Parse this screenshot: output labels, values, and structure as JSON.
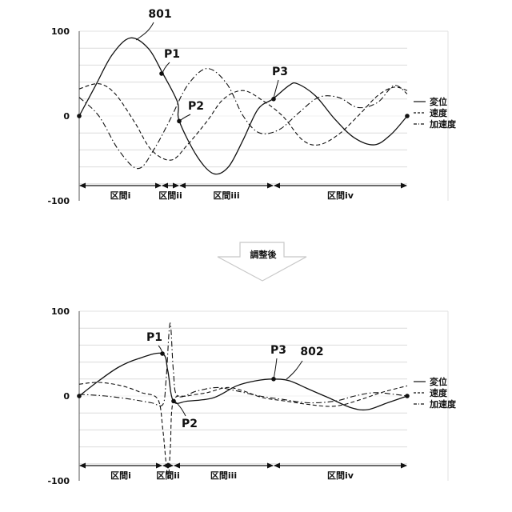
{
  "colors": {
    "line": "#111111",
    "grid": "#dcdcdc",
    "frame": "#e2e2e2",
    "arrow": "#c8c8c8"
  },
  "transition_label": "調整後",
  "chart_data": [
    {
      "type": "line",
      "callout": "801",
      "ylim": [
        -100,
        100
      ],
      "yticks": [
        "100",
        "0",
        "-100"
      ],
      "legend": [
        "変位",
        "速度",
        "加速度"
      ],
      "legend_placement": "right",
      "grid": true,
      "segments": [
        "区間i",
        "区間ii",
        "区間iii",
        "区間iv"
      ],
      "points": [
        {
          "label": "P1",
          "y": 50
        },
        {
          "label": "P2",
          "y": -6
        },
        {
          "label": "P3",
          "y": 20
        }
      ],
      "series": [
        {
          "name": "変位",
          "style": "solid",
          "values": [
            [
              0,
              0
            ],
            [
              0.05,
              36
            ],
            [
              0.1,
              72
            ],
            [
              0.155,
              92
            ],
            [
              0.21,
              80
            ],
            [
              0.255,
              50
            ],
            [
              0.3,
              16
            ],
            [
              0.305,
              -6
            ],
            [
              0.36,
              -48
            ],
            [
              0.41,
              -68
            ],
            [
              0.455,
              -60
            ],
            [
              0.5,
              -28
            ],
            [
              0.545,
              8
            ],
            [
              0.59,
              20
            ],
            [
              0.64,
              36
            ],
            [
              0.665,
              38
            ],
            [
              0.72,
              24
            ],
            [
              0.78,
              -4
            ],
            [
              0.84,
              -26
            ],
            [
              0.9,
              -34
            ],
            [
              0.95,
              -22
            ],
            [
              1,
              0
            ]
          ]
        },
        {
          "name": "速度",
          "style": "dashed",
          "values": [
            [
              0,
              32
            ],
            [
              0.06,
              38
            ],
            [
              0.11,
              26
            ],
            [
              0.17,
              -8
            ],
            [
              0.22,
              -40
            ],
            [
              0.28,
              -52
            ],
            [
              0.33,
              -34
            ],
            [
              0.39,
              -6
            ],
            [
              0.44,
              20
            ],
            [
              0.5,
              30
            ],
            [
              0.56,
              18
            ],
            [
              0.62,
              0
            ],
            [
              0.68,
              -28
            ],
            [
              0.73,
              -34
            ],
            [
              0.79,
              -22
            ],
            [
              0.85,
              0
            ],
            [
              0.91,
              24
            ],
            [
              0.96,
              34
            ],
            [
              1,
              30
            ]
          ]
        },
        {
          "name": "加速度",
          "style": "dashdot",
          "values": [
            [
              0,
              22
            ],
            [
              0.06,
              0
            ],
            [
              0.12,
              -40
            ],
            [
              0.18,
              -62
            ],
            [
              0.23,
              -38
            ],
            [
              0.28,
              -2
            ],
            [
              0.33,
              36
            ],
            [
              0.39,
              56
            ],
            [
              0.45,
              38
            ],
            [
              0.5,
              0
            ],
            [
              0.55,
              -20
            ],
            [
              0.61,
              -16
            ],
            [
              0.67,
              4
            ],
            [
              0.73,
              22
            ],
            [
              0.79,
              22
            ],
            [
              0.85,
              10
            ],
            [
              0.91,
              16
            ],
            [
              0.96,
              36
            ],
            [
              1,
              26
            ]
          ]
        }
      ]
    },
    {
      "type": "line",
      "callout": "802",
      "ylim": [
        -100,
        100
      ],
      "yticks": [
        "100",
        "0",
        "-100"
      ],
      "legend": [
        "変位",
        "速度",
        "加速度"
      ],
      "legend_placement": "right",
      "grid": true,
      "segments": [
        "区間i",
        "区間ii",
        "区間iii",
        "区間iv"
      ],
      "points": [
        {
          "label": "P1",
          "y": 50
        },
        {
          "label": "P2",
          "y": -6
        },
        {
          "label": "P3",
          "y": 20
        }
      ],
      "series": [
        {
          "name": "変位",
          "style": "solid",
          "values": [
            [
              0,
              0
            ],
            [
              0.06,
              18
            ],
            [
              0.12,
              34
            ],
            [
              0.18,
              44
            ],
            [
              0.253,
              50
            ],
            [
              0.27,
              30
            ],
            [
              0.287,
              -6
            ],
            [
              0.33,
              -6
            ],
            [
              0.41,
              -2
            ],
            [
              0.48,
              12
            ],
            [
              0.54,
              18
            ],
            [
              0.59,
              20
            ],
            [
              0.64,
              18
            ],
            [
              0.7,
              8
            ],
            [
              0.76,
              -2
            ],
            [
              0.83,
              -14
            ],
            [
              0.88,
              -16
            ],
            [
              0.94,
              -8
            ],
            [
              1,
              0
            ]
          ]
        },
        {
          "name": "速度",
          "style": "dashed",
          "values": [
            [
              0,
              14
            ],
            [
              0.06,
              16
            ],
            [
              0.13,
              12
            ],
            [
              0.19,
              4
            ],
            [
              0.24,
              -4
            ],
            [
              0.255,
              -40
            ],
            [
              0.265,
              -80
            ],
            [
              0.272,
              -96
            ],
            [
              0.278,
              -60
            ],
            [
              0.287,
              -6
            ],
            [
              0.33,
              0
            ],
            [
              0.39,
              4
            ],
            [
              0.45,
              10
            ],
            [
              0.5,
              6
            ],
            [
              0.56,
              -2
            ],
            [
              0.63,
              -6
            ],
            [
              0.7,
              -10
            ],
            [
              0.78,
              -12
            ],
            [
              0.86,
              -4
            ],
            [
              0.92,
              4
            ],
            [
              1,
              12
            ]
          ]
        },
        {
          "name": "加速度",
          "style": "dashdot",
          "values": [
            [
              0,
              2
            ],
            [
              0.08,
              0
            ],
            [
              0.16,
              -4
            ],
            [
              0.22,
              -8
            ],
            [
              0.255,
              -10
            ],
            [
              0.265,
              20
            ],
            [
              0.277,
              86
            ],
            [
              0.287,
              30
            ],
            [
              0.3,
              0
            ],
            [
              0.36,
              6
            ],
            [
              0.42,
              10
            ],
            [
              0.48,
              6
            ],
            [
              0.55,
              0
            ],
            [
              0.62,
              -4
            ],
            [
              0.7,
              -8
            ],
            [
              0.78,
              -6
            ],
            [
              0.84,
              0
            ],
            [
              0.9,
              4
            ],
            [
              0.96,
              2
            ],
            [
              1,
              0
            ]
          ]
        }
      ]
    }
  ]
}
